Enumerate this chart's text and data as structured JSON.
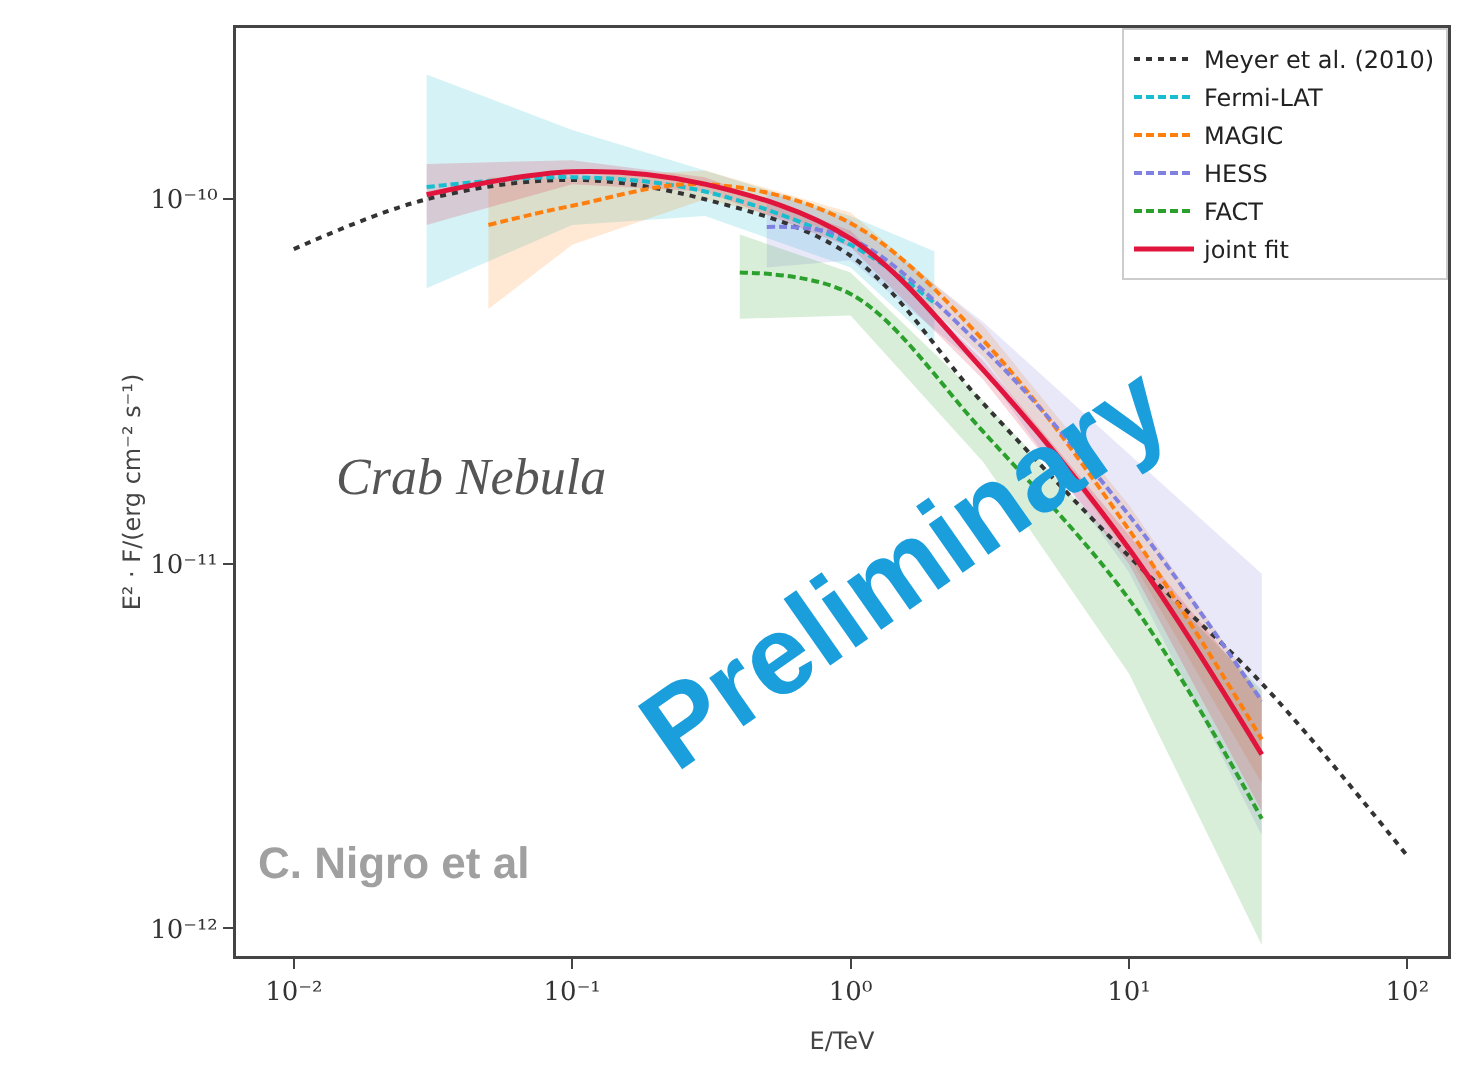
{
  "chart_data": {
    "type": "line",
    "xlabel": "E/TeV",
    "ylabel": "E² · F/(erg cm⁻² s⁻¹)",
    "log": "xy",
    "grid": false,
    "legend": "top right",
    "xlim": [
      0.0062,
      140
    ],
    "ylim": [
      8.4e-13,
      2.95e-10
    ],
    "xticks": [
      {
        "value": 0.01,
        "label": "10⁻²"
      },
      {
        "value": 0.1,
        "label": "10⁻¹"
      },
      {
        "value": 1,
        "label": "10⁰"
      },
      {
        "value": 10,
        "label": "10¹"
      },
      {
        "value": 100,
        "label": "10²"
      }
    ],
    "yticks": [
      {
        "value": 1e-12,
        "label": "10⁻¹²"
      },
      {
        "value": 1e-11,
        "label": "10⁻¹¹"
      },
      {
        "value": 1e-10,
        "label": "10⁻¹⁰"
      }
    ],
    "series": [
      {
        "name": "Meyer et al. (2010)",
        "color": "#333333",
        "line_style": "dotted",
        "x": [
          0.01,
          0.03,
          0.1,
          0.3,
          1,
          3,
          10,
          30,
          100
        ],
        "values": [
          7.3e-11,
          1e-10,
          1.13e-10,
          1e-10,
          7e-11,
          2.75e-11,
          1.05e-11,
          4.7e-12,
          1.58e-12
        ]
      },
      {
        "name": "Fermi-LAT",
        "color": "#17becf",
        "line_style": "dashed",
        "x": [
          0.03,
          0.1,
          0.3,
          1,
          2
        ],
        "values": [
          1.08e-10,
          1.15e-10,
          1.05e-10,
          7.5e-11,
          5.2e-11
        ],
        "lower": [
          5.7e-11,
          8.5e-11,
          9e-11,
          6.5e-11,
          4e-11
        ],
        "upper": [
          2.2e-10,
          1.55e-10,
          1.2e-10,
          9e-11,
          7.2e-11
        ]
      },
      {
        "name": "MAGIC",
        "color": "#ff7f0e",
        "line_style": "dashed",
        "x": [
          0.05,
          0.1,
          0.3,
          1,
          3,
          10,
          30
        ],
        "values": [
          8.5e-11,
          9.6e-11,
          1.1e-10,
          8.6e-11,
          4.1e-11,
          1.24e-11,
          3.3e-12
        ],
        "lower": [
          5e-11,
          7.5e-11,
          1e-10,
          8e-11,
          3.7e-11,
          1.05e-11,
          2.5e-12
        ],
        "upper": [
          1.15e-10,
          1.15e-10,
          1.2e-10,
          9.2e-11,
          4.5e-11,
          1.45e-11,
          4.3e-12
        ]
      },
      {
        "name": "HESS",
        "color": "#8080e0",
        "line_style": "dashed",
        "x": [
          0.5,
          1,
          3,
          10,
          30
        ],
        "values": [
          8.4e-11,
          7.8e-11,
          3.9e-11,
          1.36e-11,
          4.2e-12
        ],
        "lower": [
          6.5e-11,
          6.8e-11,
          3.4e-11,
          9.5e-12,
          1.8e-12
        ],
        "upper": [
          1.05e-10,
          8.8e-11,
          4.6e-11,
          2e-11,
          9.4e-12
        ]
      },
      {
        "name": "FACT",
        "color": "#2ca02c",
        "line_style": "dashed",
        "x": [
          0.4,
          1,
          3,
          10,
          30
        ],
        "values": [
          6.3e-11,
          5.5e-11,
          2.3e-11,
          8e-12,
          2e-12
        ],
        "lower": [
          4.7e-11,
          4.8e-11,
          1.9e-11,
          5e-12,
          9e-13
        ],
        "upper": [
          8e-11,
          6.3e-11,
          2.8e-11,
          1.05e-11,
          4.5e-12
        ]
      },
      {
        "name": "joint fit",
        "color": "#e0143c",
        "line_style": "solid",
        "x": [
          0.03,
          0.1,
          0.3,
          1,
          3,
          10,
          30
        ],
        "values": [
          1.03e-10,
          1.19e-10,
          1.1e-10,
          7.8e-11,
          3.4e-11,
          1.1e-11,
          3e-12
        ],
        "lower": [
          8.5e-11,
          1.1e-10,
          1.05e-10,
          7.4e-11,
          3.2e-11,
          1e-11,
          2.1e-12
        ],
        "upper": [
          1.25e-10,
          1.28e-10,
          1.15e-10,
          8.2e-11,
          3.6e-11,
          1.2e-11,
          4.3e-12
        ]
      }
    ],
    "annotations": [
      "Crab Nebula",
      "C. Nigro et al",
      "Preliminary"
    ]
  }
}
